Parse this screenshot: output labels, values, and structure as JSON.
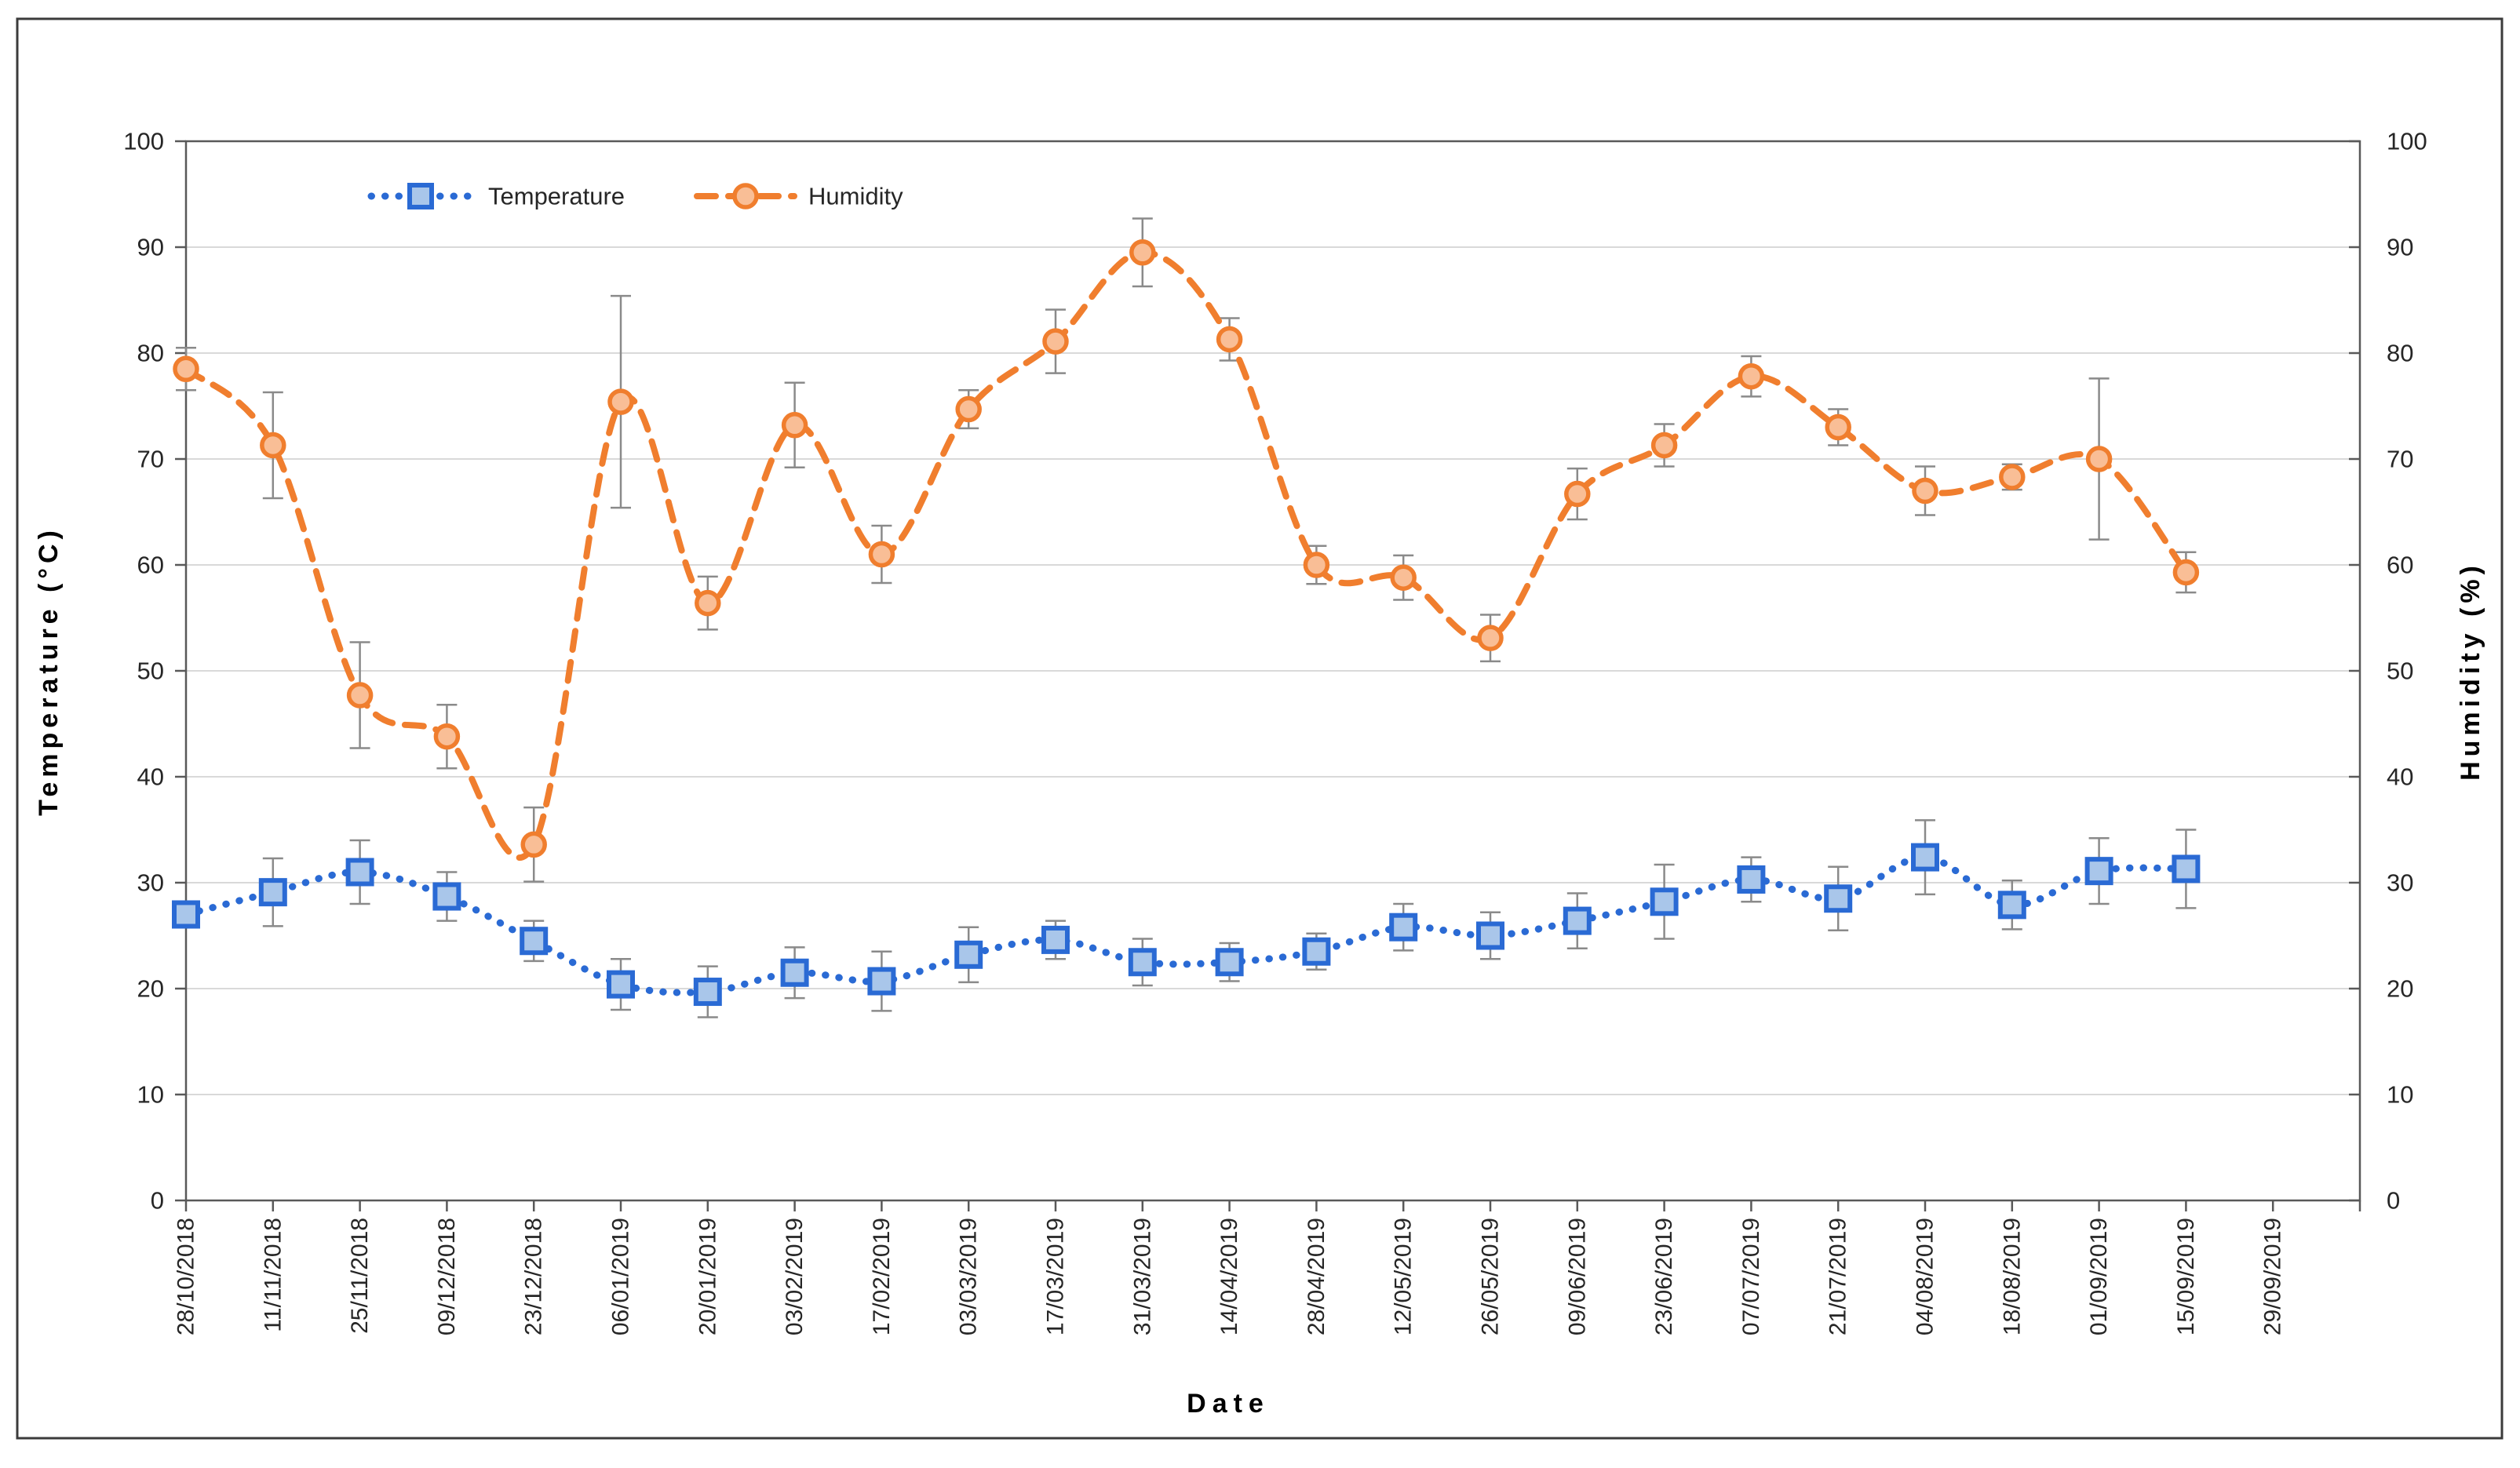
{
  "chart_data": {
    "type": "line",
    "title": "",
    "xlabel": "Date",
    "ylabel_left": "Temperature (°C)",
    "ylabel_right": "Humidity (%)",
    "ylim": [
      0,
      100
    ],
    "ytick_step": 10,
    "yticks": [
      0,
      10,
      20,
      30,
      40,
      50,
      60,
      70,
      80,
      90,
      100
    ],
    "grid": true,
    "legend_position": "top-inside",
    "categories": [
      "28/10/2018",
      "11/11/2018",
      "25/11/2018",
      "09/12/2018",
      "23/12/2018",
      "06/01/2019",
      "20/01/2019",
      "03/02/2019",
      "17/02/2019",
      "03/03/2019",
      "17/03/2019",
      "31/03/2019",
      "14/04/2019",
      "28/04/2019",
      "12/05/2019",
      "26/05/2019",
      "09/06/2019",
      "23/06/2019",
      "07/07/2019",
      "21/07/2019",
      "04/08/2019",
      "18/08/2019",
      "01/09/2019",
      "15/09/2019",
      "29/09/2019"
    ],
    "series": [
      {
        "name": "Temperature",
        "axis": "left",
        "marker": "square",
        "line_style": "dotted",
        "color": "#2A6AD4",
        "marker_fill": "#A9C6EA",
        "values": [
          27.0,
          29.1,
          31.0,
          28.7,
          24.5,
          20.4,
          19.7,
          21.5,
          20.7,
          23.2,
          24.6,
          22.5,
          22.5,
          23.5,
          25.8,
          25.0,
          26.4,
          28.2,
          30.3,
          28.5,
          32.4,
          27.9,
          31.1,
          31.3,
          null
        ],
        "errors": [
          1.2,
          3.2,
          3.0,
          2.3,
          1.9,
          2.4,
          2.4,
          2.4,
          2.8,
          2.6,
          1.8,
          2.2,
          1.8,
          1.7,
          2.2,
          2.2,
          2.6,
          3.5,
          2.1,
          3.0,
          3.5,
          2.3,
          3.1,
          3.7,
          null
        ]
      },
      {
        "name": "Humidity",
        "axis": "right",
        "marker": "circle",
        "line_style": "dashed",
        "color": "#F07E2E",
        "marker_fill": "#F9BE96",
        "values": [
          78.5,
          71.3,
          47.7,
          43.8,
          33.6,
          75.4,
          56.4,
          73.2,
          61.0,
          74.7,
          81.1,
          89.5,
          81.3,
          60.0,
          58.8,
          53.1,
          66.7,
          71.3,
          77.8,
          73.0,
          67.0,
          68.3,
          70.0,
          59.3,
          null
        ],
        "errors": [
          2.0,
          5.0,
          5.0,
          3.0,
          3.5,
          10.0,
          2.5,
          4.0,
          2.7,
          1.8,
          3.0,
          3.2,
          2.0,
          1.8,
          2.1,
          2.2,
          2.4,
          2.0,
          1.9,
          1.7,
          2.3,
          1.2,
          7.6,
          1.9,
          null
        ]
      }
    ],
    "error_bar_color": "#8A8A8A",
    "gridline_color": "#D9D9D9",
    "axis_color": "#595959",
    "outer_border_color": "#3B3B3B",
    "text_color": "#262626"
  },
  "legend": {
    "items": [
      {
        "label": "Temperature"
      },
      {
        "label": "Humidity"
      }
    ]
  }
}
